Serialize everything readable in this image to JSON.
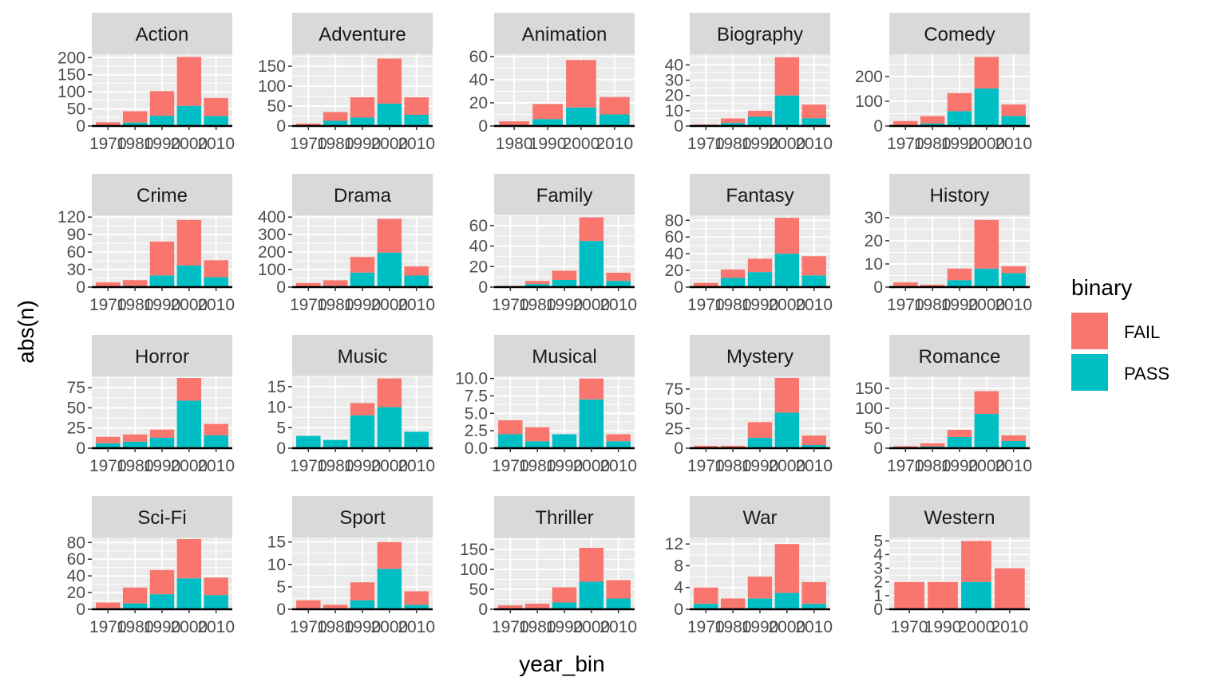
{
  "chart_data": {
    "type": "bar",
    "stacked": true,
    "facet": "genre",
    "xlabel": "year_bin",
    "ylabel": "abs(n)",
    "legend": {
      "title": "binary",
      "position": "right",
      "entries": [
        "FAIL",
        "PASS"
      ]
    },
    "colors": {
      "FAIL": "#F8766D",
      "PASS": "#00BFC4",
      "panel_bg": "#EBEBEB",
      "strip_bg": "#D9D9D9",
      "grid": "#FFFFFF"
    },
    "panels": [
      {
        "title": "Action",
        "categories": [
          "1970",
          "1980",
          "1990",
          "2000",
          "2010"
        ],
        "ylim": [
          0,
          210
        ],
        "yticks": [
          0,
          50,
          100,
          150,
          200
        ],
        "fail": [
          9,
          33,
          72,
          143,
          53
        ],
        "pass": [
          2,
          10,
          30,
          59,
          29
        ]
      },
      {
        "title": "Adventure",
        "categories": [
          "1970",
          "1980",
          "1990",
          "2000",
          "2010"
        ],
        "ylim": [
          0,
          180
        ],
        "yticks": [
          0,
          50,
          100,
          150
        ],
        "fail": [
          5,
          22,
          51,
          113,
          44
        ],
        "pass": [
          1,
          13,
          21,
          56,
          28
        ]
      },
      {
        "title": "Animation",
        "categories": [
          "1980",
          "1990",
          "2000",
          "2010"
        ],
        "ylim": [
          0,
          62
        ],
        "yticks": [
          0,
          20,
          40,
          60
        ],
        "fail": [
          4,
          13,
          41,
          15
        ],
        "pass": [
          0,
          6,
          16,
          10
        ]
      },
      {
        "title": "Biography",
        "categories": [
          "1970",
          "1980",
          "1990",
          "2000",
          "2010"
        ],
        "ylim": [
          0,
          47
        ],
        "yticks": [
          0,
          10,
          20,
          30,
          40
        ],
        "fail": [
          1,
          3,
          4,
          25,
          9
        ],
        "pass": [
          0,
          2,
          6,
          20,
          5
        ]
      },
      {
        "title": "Comedy",
        "categories": [
          "1970",
          "1980",
          "1990",
          "2000",
          "2010"
        ],
        "ylim": [
          0,
          290
        ],
        "yticks": [
          0,
          100,
          200
        ],
        "fail": [
          17,
          30,
          73,
          127,
          47
        ],
        "pass": [
          3,
          10,
          60,
          152,
          40
        ]
      },
      {
        "title": "Crime",
        "categories": [
          "1970",
          "1980",
          "1990",
          "2000",
          "2010"
        ],
        "ylim": [
          0,
          123
        ],
        "yticks": [
          0,
          30,
          60,
          90,
          120
        ],
        "fail": [
          7,
          10,
          58,
          78,
          29
        ],
        "pass": [
          1,
          2,
          20,
          37,
          17
        ]
      },
      {
        "title": "Drama",
        "categories": [
          "1970",
          "1980",
          "1990",
          "2000",
          "2010"
        ],
        "ylim": [
          0,
          410
        ],
        "yticks": [
          0,
          100,
          200,
          300,
          400
        ],
        "fail": [
          20,
          32,
          89,
          193,
          52
        ],
        "pass": [
          3,
          7,
          83,
          197,
          66
        ]
      },
      {
        "title": "Family",
        "categories": [
          "1970",
          "1980",
          "1990",
          "2000",
          "2010"
        ],
        "ylim": [
          0,
          70
        ],
        "yticks": [
          0,
          20,
          40,
          60
        ],
        "fail": [
          1,
          3,
          9,
          23,
          8
        ],
        "pass": [
          0,
          3,
          7,
          45,
          6
        ]
      },
      {
        "title": "Fantasy",
        "categories": [
          "1970",
          "1980",
          "1990",
          "2000",
          "2010"
        ],
        "ylim": [
          0,
          86
        ],
        "yticks": [
          0,
          20,
          40,
          60,
          80
        ],
        "fail": [
          4,
          10,
          16,
          43,
          23
        ],
        "pass": [
          1,
          11,
          18,
          40,
          14
        ]
      },
      {
        "title": "History",
        "categories": [
          "1970",
          "1980",
          "1990",
          "2000",
          "2010"
        ],
        "ylim": [
          0,
          31
        ],
        "yticks": [
          0,
          10,
          20,
          30
        ],
        "fail": [
          2,
          1,
          5,
          21,
          3
        ],
        "pass": [
          0,
          0,
          3,
          8,
          6
        ]
      },
      {
        "title": "Horror",
        "categories": [
          "1970",
          "1980",
          "1990",
          "2000",
          "2010"
        ],
        "ylim": [
          0,
          89
        ],
        "yticks": [
          0,
          25,
          50,
          75
        ],
        "fail": [
          8,
          9,
          10,
          28,
          14
        ],
        "pass": [
          6,
          8,
          13,
          59,
          16
        ]
      },
      {
        "title": "Music",
        "categories": [
          "1970",
          "1980",
          "1990",
          "2000",
          "2010"
        ],
        "ylim": [
          0,
          17.5
        ],
        "yticks": [
          0,
          5,
          10,
          15
        ],
        "fail": [
          0,
          0,
          3,
          7,
          0
        ],
        "pass": [
          3,
          2,
          8,
          10,
          4
        ]
      },
      {
        "title": "Musical",
        "categories": [
          "1970",
          "1980",
          "1990",
          "2000",
          "2010"
        ],
        "ylim": [
          0,
          10.3
        ],
        "yticks": [
          0,
          2.5,
          5,
          7.5,
          10
        ],
        "ytick_labels": [
          "0.0",
          "2.5",
          "5.0",
          "7.5",
          "10.0"
        ],
        "fail": [
          2,
          2,
          0,
          3,
          1
        ],
        "pass": [
          2,
          1,
          2,
          7,
          1
        ]
      },
      {
        "title": "Mystery",
        "categories": [
          "1970",
          "1980",
          "1990",
          "2000",
          "2010"
        ],
        "ylim": [
          0,
          91
        ],
        "yticks": [
          0,
          25,
          50,
          75
        ],
        "fail": [
          2,
          2,
          20,
          44,
          12
        ],
        "pass": [
          1,
          1,
          13,
          45,
          4
        ]
      },
      {
        "title": "Romance",
        "categories": [
          "1970",
          "1980",
          "1990",
          "2000",
          "2010"
        ],
        "ylim": [
          0,
          180
        ],
        "yticks": [
          0,
          50,
          100,
          150
        ],
        "fail": [
          3,
          8,
          18,
          57,
          14
        ],
        "pass": [
          2,
          4,
          28,
          86,
          18
        ]
      },
      {
        "title": "Sci-Fi",
        "categories": [
          "1970",
          "1980",
          "1990",
          "2000",
          "2010"
        ],
        "ylim": [
          0,
          86
        ],
        "yticks": [
          0,
          20,
          40,
          60,
          80
        ],
        "fail": [
          7,
          19,
          29,
          47,
          21
        ],
        "pass": [
          1,
          7,
          18,
          37,
          17
        ]
      },
      {
        "title": "Sport",
        "categories": [
          "1970",
          "1980",
          "1990",
          "2000",
          "2010"
        ],
        "ylim": [
          0,
          16
        ],
        "yticks": [
          0,
          5,
          10,
          15
        ],
        "fail": [
          2,
          1,
          4,
          6,
          3
        ],
        "pass": [
          0,
          0,
          2,
          9,
          1
        ]
      },
      {
        "title": "Thriller",
        "categories": [
          "1970",
          "1980",
          "1990",
          "2000",
          "2010"
        ],
        "ylim": [
          0,
          180
        ],
        "yticks": [
          0,
          50,
          100,
          150
        ],
        "fail": [
          10,
          13,
          38,
          85,
          46
        ],
        "pass": [
          0,
          1,
          17,
          69,
          27
        ]
      },
      {
        "title": "War",
        "categories": [
          "1970",
          "1980",
          "1990",
          "2000",
          "2010"
        ],
        "ylim": [
          0,
          13.2
        ],
        "yticks": [
          0,
          4,
          8,
          12
        ],
        "fail": [
          3,
          2,
          4,
          9,
          4
        ],
        "pass": [
          1,
          0,
          2,
          3,
          1
        ]
      },
      {
        "title": "Western",
        "categories": [
          "1970",
          "1990",
          "2000",
          "2010"
        ],
        "ylim": [
          0,
          5.25
        ],
        "yticks": [
          0,
          1,
          2,
          3,
          4,
          5
        ],
        "fail": [
          2,
          2,
          3,
          3
        ],
        "pass": [
          0,
          0,
          2,
          0
        ]
      }
    ]
  }
}
